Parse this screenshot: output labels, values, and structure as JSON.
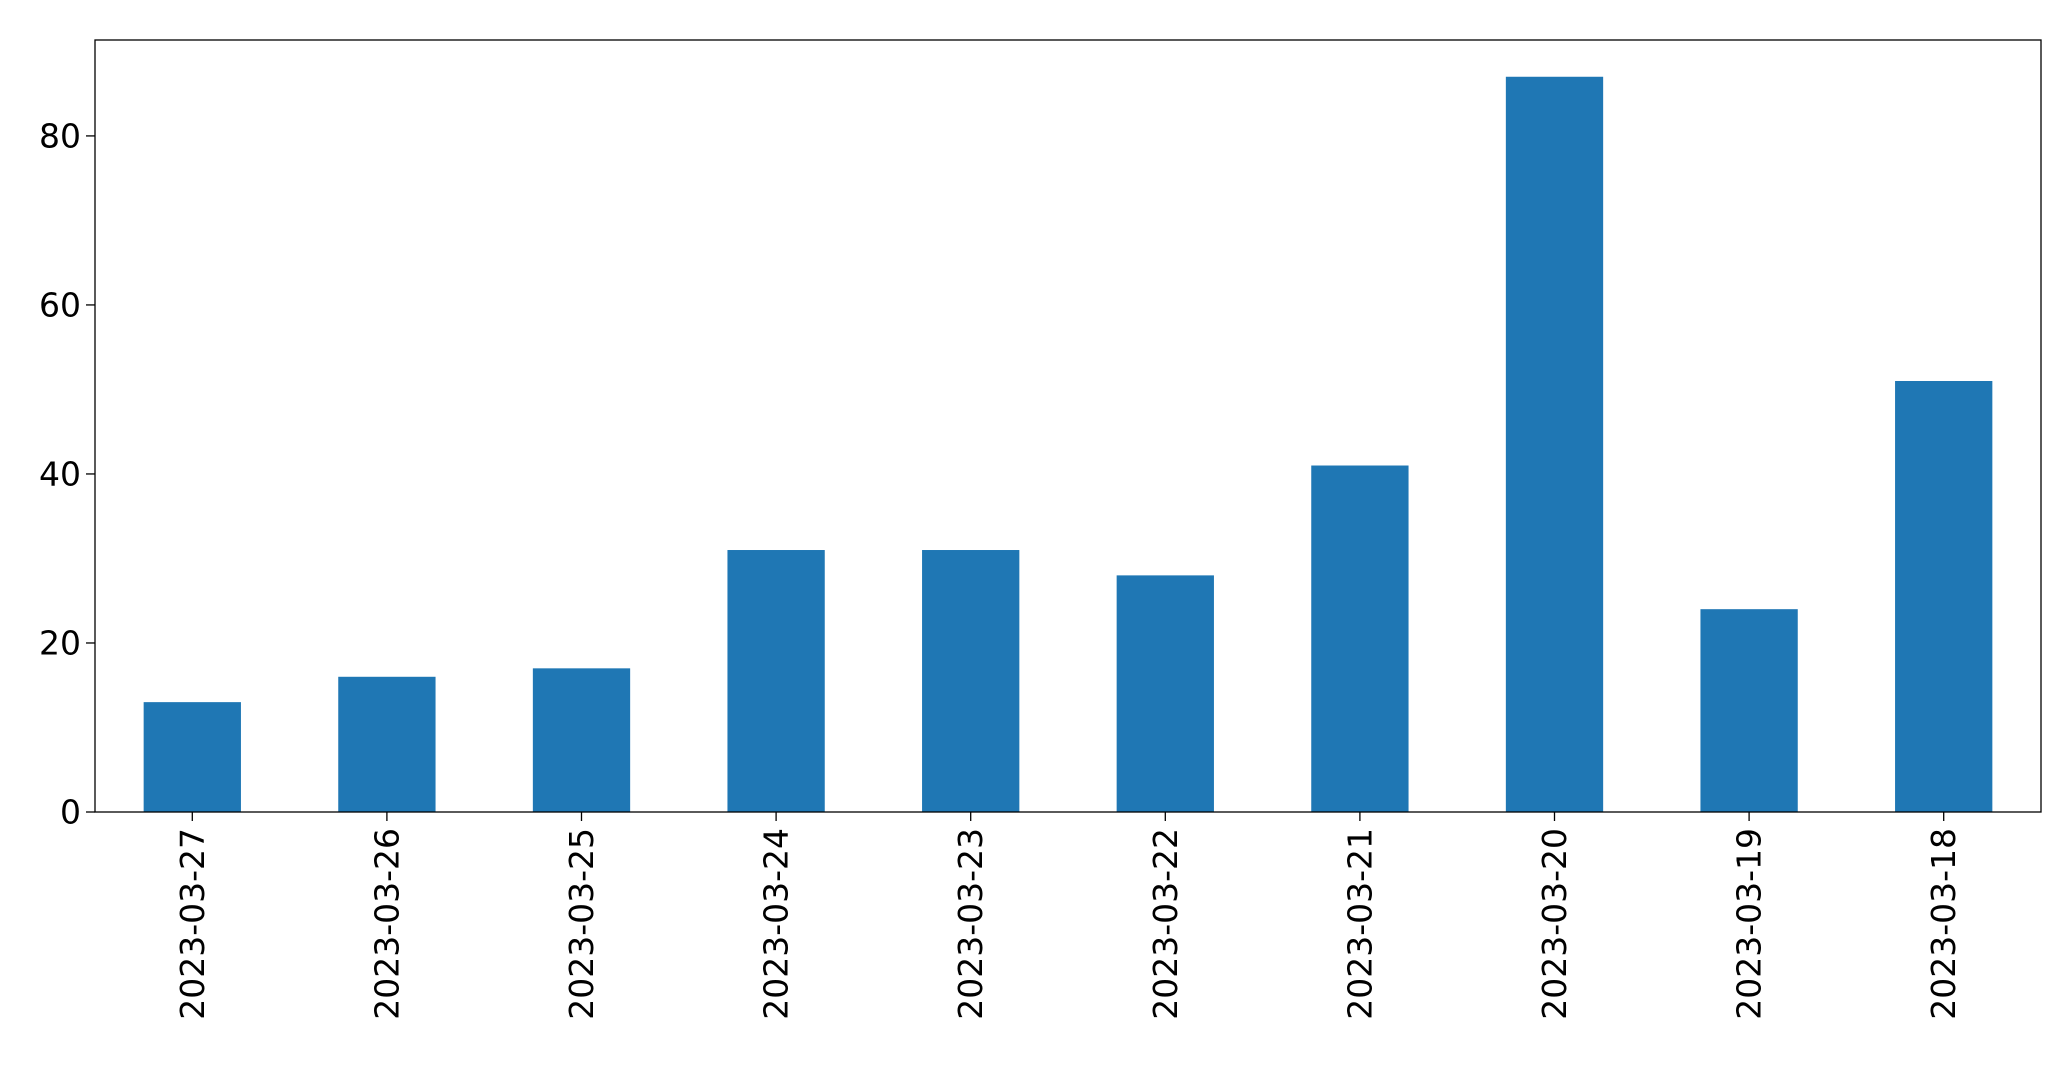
{
  "chart_data": {
    "type": "bar",
    "title": "",
    "xlabel": "",
    "ylabel": "",
    "categories": [
      "2023-03-27",
      "2023-03-26",
      "2023-03-25",
      "2023-03-24",
      "2023-03-23",
      "2023-03-22",
      "2023-03-21",
      "2023-03-20",
      "2023-03-19",
      "2023-03-18"
    ],
    "values": [
      13,
      16,
      17,
      31,
      31,
      28,
      41,
      87,
      24,
      51
    ],
    "ylim": [
      0,
      91.35
    ],
    "yticks": [
      0,
      20,
      40,
      60,
      80
    ],
    "grid": false,
    "legend": "none",
    "bar_color": "#1f77b4"
  }
}
